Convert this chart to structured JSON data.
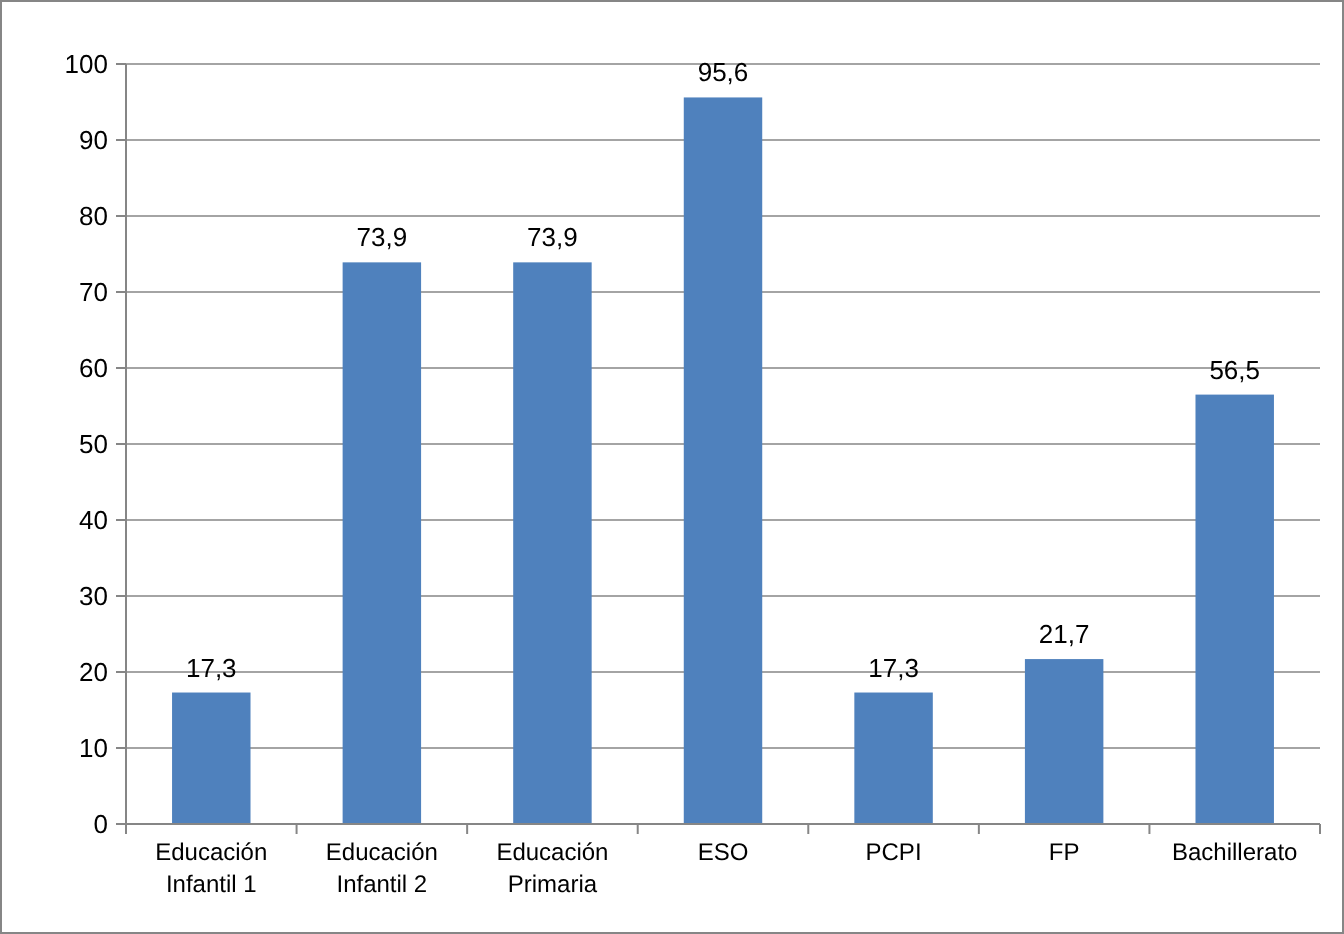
{
  "chart_data": {
    "type": "bar",
    "categories": [
      "Educación Infantil 1",
      "Educación Infantil 2",
      "Educación Primaria",
      "ESO",
      "PCPI",
      "FP",
      "Bachillerato"
    ],
    "values": [
      17.3,
      73.9,
      73.9,
      95.6,
      17.3,
      21.7,
      56.5
    ],
    "value_labels": [
      "17,3",
      "73,9",
      "73,9",
      "95,6",
      "17,3",
      "21,7",
      "56,5"
    ],
    "color": "#4f81bd",
    "ylim": [
      0,
      100
    ],
    "yticks": [
      0,
      10,
      20,
      30,
      40,
      50,
      60,
      70,
      80,
      90,
      100
    ],
    "grid": "y"
  }
}
